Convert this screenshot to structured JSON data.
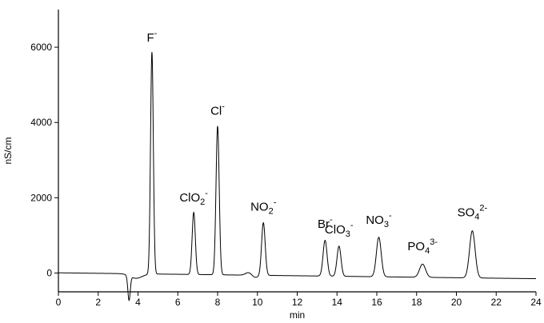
{
  "chart_data": {
    "type": "line",
    "xlabel": "min",
    "ylabel": "nS/cm",
    "xlim": [
      0,
      24
    ],
    "ylim": [
      -500,
      7000
    ],
    "x_ticks": [
      0,
      2,
      4,
      6,
      8,
      10,
      12,
      14,
      16,
      18,
      20,
      22,
      24
    ],
    "y_ticks": [
      0,
      2000,
      4000,
      6000
    ],
    "x_tick_labels": [
      "0",
      "2",
      "4",
      "6",
      "8",
      "10",
      "12",
      "14",
      "16",
      "18",
      "20",
      "22",
      "24"
    ],
    "y_tick_labels": [
      "0",
      "2000",
      "4000",
      "6000"
    ],
    "grid": false,
    "series": [
      {
        "peaks": [
          {
            "label": "F",
            "sub": "",
            "sup": "-",
            "x": 4.7,
            "y": 5900,
            "width": 0.07
          },
          {
            "label": "ClO",
            "sub": "2",
            "sup": "-",
            "x": 6.8,
            "y": 1650,
            "width": 0.08
          },
          {
            "label": "Cl",
            "sub": "",
            "sup": "-",
            "x": 8.0,
            "y": 3950,
            "width": 0.08
          },
          {
            "label": "NO",
            "sub": "2",
            "sup": "-",
            "x": 10.3,
            "y": 1400,
            "width": 0.09
          },
          {
            "label": "Br",
            "sub": "",
            "sup": "-",
            "x": 13.4,
            "y": 950,
            "width": 0.1
          },
          {
            "label": "ClO",
            "sub": "3",
            "sup": "-",
            "x": 14.1,
            "y": 800,
            "width": 0.1
          },
          {
            "label": "NO",
            "sub": "3",
            "sup": "-",
            "x": 16.1,
            "y": 1050,
            "width": 0.12
          },
          {
            "label": "PO",
            "sub": "4",
            "sup": "3-",
            "x": 18.3,
            "y": 350,
            "width": 0.15
          },
          {
            "label": "SO",
            "sub": "4",
            "sup": "2-",
            "x": 20.8,
            "y": 1250,
            "width": 0.14
          }
        ]
      }
    ]
  }
}
